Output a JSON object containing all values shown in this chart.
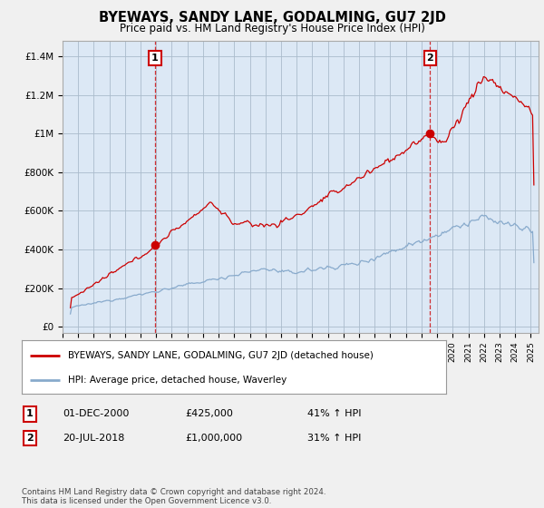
{
  "title": "BYEWAYS, SANDY LANE, GODALMING, GU7 2JD",
  "subtitle": "Price paid vs. HM Land Registry's House Price Index (HPI)",
  "ylabel_ticks": [
    "£0",
    "£200K",
    "£400K",
    "£600K",
    "£800K",
    "£1M",
    "£1.2M",
    "£1.4M"
  ],
  "ytick_vals": [
    0,
    200000,
    400000,
    600000,
    800000,
    1000000,
    1200000,
    1400000
  ],
  "ylim": [
    -30000,
    1480000
  ],
  "xlim_start": 1995.3,
  "xlim_end": 2025.5,
  "red_line_color": "#cc0000",
  "blue_line_color": "#88aacc",
  "plot_bg_color": "#dce8f5",
  "background_color": "#f0f0f0",
  "grid_color": "#aabbcc",
  "sale1_year": 2000.92,
  "sale1_price": 425000,
  "sale2_year": 2018.55,
  "sale2_price": 1000000,
  "legend_red_label": "BYEWAYS, SANDY LANE, GODALMING, GU7 2JD (detached house)",
  "legend_blue_label": "HPI: Average price, detached house, Waverley",
  "table_row1": [
    "1",
    "01-DEC-2000",
    "£425,000",
    "41% ↑ HPI"
  ],
  "table_row2": [
    "2",
    "20-JUL-2018",
    "£1,000,000",
    "31% ↑ HPI"
  ],
  "footnote": "Contains HM Land Registry data © Crown copyright and database right 2024.\nThis data is licensed under the Open Government Licence v3.0."
}
